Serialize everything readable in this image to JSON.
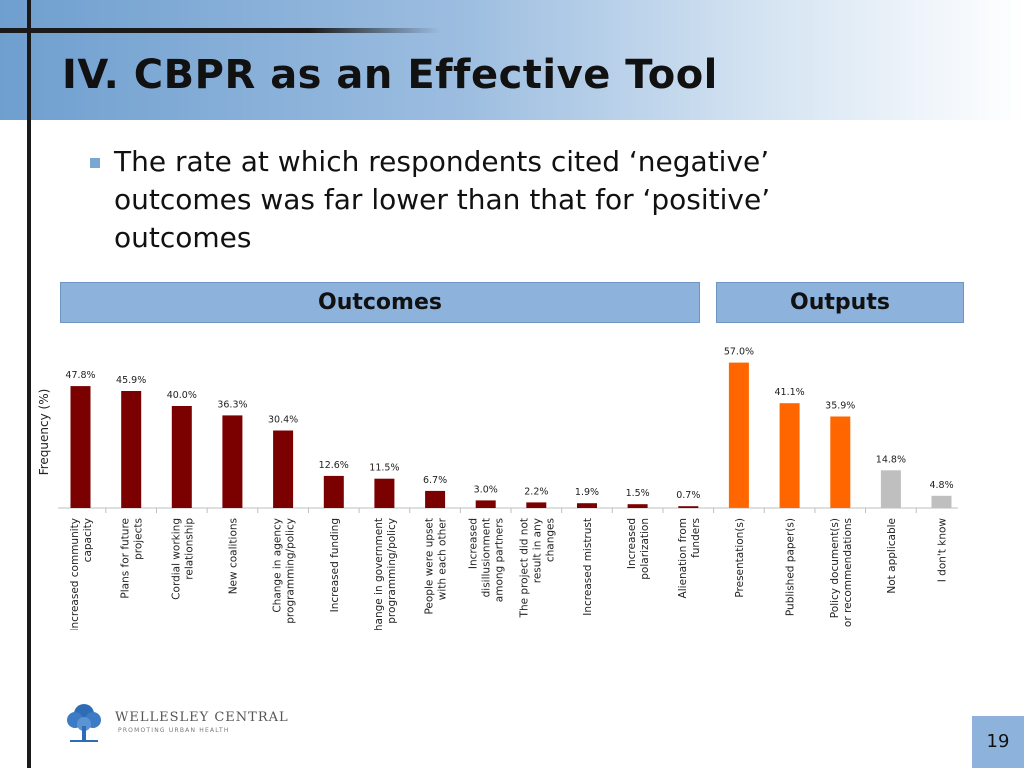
{
  "slide": {
    "title": "IV. CBPR as an Effective Tool",
    "bullet": "The rate at which respondents cited ‘negative’ outcomes was far lower than that for ‘positive’ outcomes",
    "sections": {
      "outcomes": "Outcomes",
      "outputs": "Outputs"
    },
    "logo": {
      "name": "WELLESLEY CENTRAL",
      "tagline": "PROMOTING URBAN HEALTH"
    },
    "page_number": "19"
  },
  "colors": {
    "outcome_bar": "#7b0000",
    "output_bar": "#ff6600",
    "other_bar": "#bfbfbf",
    "section_fill": "#8db3dc",
    "header_gradient_start": "#6f9fcf"
  },
  "chart_data": {
    "type": "bar",
    "title": "",
    "ylabel": "Frequency (%)",
    "xlabel": "",
    "ylim": [
      0,
      60
    ],
    "grid": false,
    "legend": "none",
    "categories": [
      "Increased community capacity",
      "Plans for future projects",
      "Cordial working relationship",
      "New coalitions",
      "Change in agency programming/policy",
      "Increased funding",
      "Change in government programming/policy",
      "People were upset with each other",
      "Increased disillusionment among partners",
      "The project did not result in any changes",
      "Increased mistrust",
      "Increased polarization",
      "Alienation from funders",
      "Presentation(s)",
      "Published paper(s)",
      "Policy document(s) or recommendations",
      "Not applicable",
      "I don't know"
    ],
    "values": [
      47.8,
      45.9,
      40.0,
      36.3,
      30.4,
      12.6,
      11.5,
      6.7,
      3.0,
      2.2,
      1.9,
      1.5,
      0.7,
      57.0,
      41.1,
      35.9,
      14.8,
      4.8
    ],
    "value_labels": [
      "47.8%",
      "45.9%",
      "40.0%",
      "36.3%",
      "30.4%",
      "12.6%",
      "11.5%",
      "6.7%",
      "3.0%",
      "2.2%",
      "1.9%",
      "1.5%",
      "0.7%",
      "57.0%",
      "41.1%",
      "35.9%",
      "14.8%",
      "4.8%"
    ],
    "groups": [
      "outcome",
      "outcome",
      "outcome",
      "outcome",
      "outcome",
      "outcome",
      "outcome",
      "outcome",
      "outcome",
      "outcome",
      "outcome",
      "outcome",
      "outcome",
      "output",
      "output",
      "output",
      "other",
      "other"
    ]
  }
}
